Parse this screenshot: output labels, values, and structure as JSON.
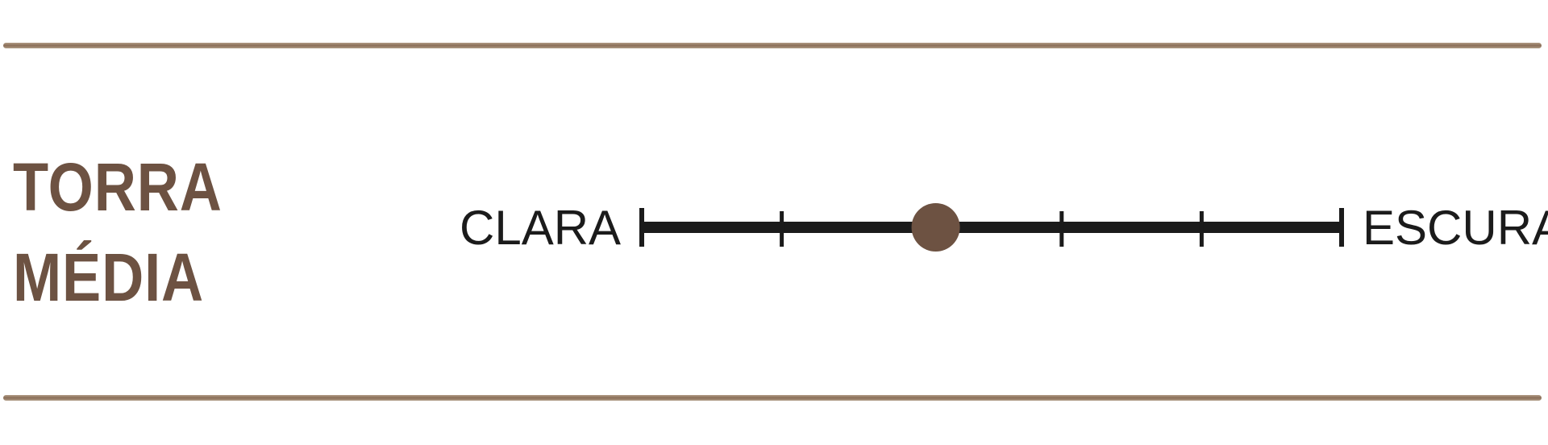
{
  "roast": {
    "title_line1": "TORRA",
    "title_line2": "MÉDIA"
  },
  "scale": {
    "left_label": "CLARA",
    "right_label": "ESCURA",
    "steps": 5,
    "level": 2.1
  },
  "colors": {
    "accent_brown": "#6d5242",
    "rule_brown": "#8a6e58",
    "line": "#1b1b1b"
  }
}
